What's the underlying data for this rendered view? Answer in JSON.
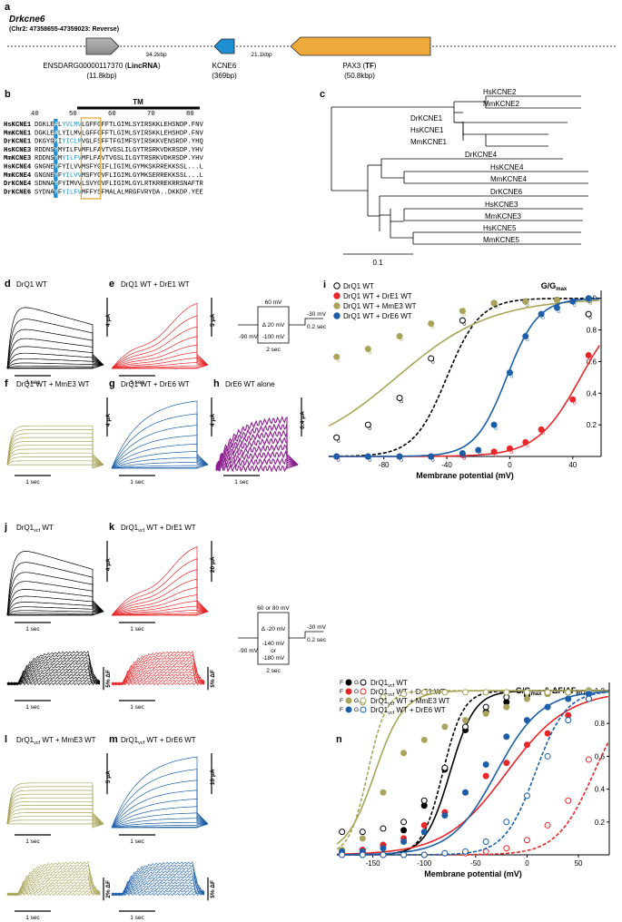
{
  "panel_a": {
    "letter": "a",
    "gene": "Drkcne6",
    "locus": "(Chr2: 47358655-47359023: Reverse)",
    "gene1_name_pre": "ENSDARG00000117370 (",
    "gene1_name_bold": "LincRNA",
    "gene1_name_post": ")",
    "gene1_size": "(11.8kbp)",
    "gap1": "34.2kbp",
    "gene2_name": "KCNE6",
    "gene2_size": "(369bp)",
    "gap2": "21.1kbp",
    "gene3_name_pre": "PAX3 (",
    "gene3_name_bold": "TF",
    "gene3_name_post": ")",
    "gene3_size": "(50.8kbp)"
  },
  "panel_b": {
    "letter": "b",
    "tm_label": "TM",
    "positions": [
      "40",
      "50",
      "60",
      "70",
      "80"
    ],
    "rows": [
      {
        "name": "HsKCNE1",
        "seq": "DGKLEALYVLMVLGFFGFFTLGIMLSYIRSKKLEHSNDP.FNV"
      },
      {
        "name": "MmKCNE1",
        "seq": "DGKLEALYILMVLGFFGFFTLGIMLSYIRSKKLEHSHDP.FNV"
      },
      {
        "name": "DrKCNE1",
        "seq": "DKGYGMIYICLMVGLFSFFTFGIMFSYIRSKKVENSRDP.YHQ"
      },
      {
        "name": "HsKCNE3",
        "seq": "RDDNSYMYILFVMFLFAVTVGSLILGYTRSRKVDKRSDP.YHV"
      },
      {
        "name": "MmKCNE3",
        "seq": "RDDNSYMYILFVMFLFAVTVGSLILGYTRSRKVDKRSDP.YHV"
      },
      {
        "name": "HsKCNE4",
        "seq": "GNGNEYFYILVVMSFYGIFLIGIMLGYMKSKRREKKSSL...L"
      },
      {
        "name": "MmKCNE4",
        "seq": "GNGNEYFYILVVMSFYGVFLIGIMLGYMKSERREKKSSL...L"
      },
      {
        "name": "DrKCNE4",
        "seq": "SDNNAYFYIMVVLSVYGVFLIGIMLGYLRTKRREKRRSNAFTR"
      },
      {
        "name": "DrKCNE6",
        "seq": "SYDNAYFYILFVMFFYSFMALALMRGFVRYDA..DKKDP.YEE"
      }
    ]
  },
  "panel_c": {
    "letter": "c",
    "taxa": [
      "HsKCNE2",
      "MmKCNE2",
      "DrKCNE1",
      "HsKCNE1",
      "MmKCNE1",
      "DrKCNE4",
      "HsKCNE4",
      "MmKCNE4",
      "DrKCNE6",
      "HsKCNE3",
      "MmKCNE3",
      "HsKCNE5",
      "MmKCNE5"
    ],
    "scale_label": "0.1"
  },
  "traces_top": {
    "d": {
      "letter": "d",
      "title": "DrQ1 WT",
      "scale": "4 μA",
      "time": "1 sec",
      "color": "#000000"
    },
    "e": {
      "letter": "e",
      "title": "DrQ1 WT + DrE1 WT",
      "scale": "5 μA",
      "time": "1 sec",
      "color": "#e8272a"
    },
    "f": {
      "letter": "f",
      "title": "DrQ1 WT + MmE3 WT",
      "scale": "4 μA",
      "time": "1 sec",
      "color": "#a9a45a"
    },
    "g": {
      "letter": "g",
      "title": "DrQ1 WT + DrE6 WT",
      "scale": "4 μA",
      "time": "1 sec",
      "color": "#1c5fa8"
    },
    "h": {
      "letter": "h",
      "title": "DrE6 WT alone",
      "scale": "0.4 μA",
      "time": "1 sec",
      "color": "#8b1f8f"
    }
  },
  "protocol_top": {
    "v1": "60 mV",
    "step": "Δ 20 mV",
    "v2": "-100 mV",
    "hold": "-90 mV",
    "tail": "-30 mV",
    "tail_t": "0.2 sec",
    "dur": "2 sec"
  },
  "traces_bottom": {
    "j": {
      "letter": "j",
      "title_pre": "DrQ1",
      "title_sub": "vcf",
      "title_post": " WT",
      "scale": "4 μA",
      "fscale": "5% ΔF",
      "time": "1 sec",
      "color": "#000000"
    },
    "k": {
      "letter": "k",
      "title_pre": "DrQ1",
      "title_sub": "vcf",
      "title_post": " WT + DrE1 WT",
      "scale": "20 μA",
      "fscale": "5% ΔF",
      "time": "1 sec",
      "color": "#e8272a"
    },
    "l": {
      "letter": "l",
      "title_pre": "DrQ1",
      "title_sub": "vcf",
      "title_post": " WT + MmE3 WT",
      "scale": "5 μA",
      "fscale": "2% ΔF",
      "time": "1 sec",
      "color": "#a9a45a"
    },
    "m": {
      "letter": "m",
      "title_pre": "DrQ1",
      "title_sub": "vcf",
      "title_post": " WT + DrE6 WT",
      "scale": "10 μA",
      "fscale": "5% ΔF",
      "time": "1 sec",
      "color": "#1c5fa8"
    }
  },
  "protocol_bottom": {
    "v1": "60 or 80 mV",
    "step": "Δ -20 mV",
    "v2a": "-140 mV",
    "v2b": "or",
    "v2c": "-180 mV",
    "hold": "-90 mV",
    "tail": "-30 mV",
    "tail_t": "0.2 sec",
    "dur": "2 sec"
  },
  "chart_data": [
    {
      "panel": "i",
      "type": "scatter",
      "title": "G/G",
      "title_sub": "max",
      "xlabel": "Membrane potential (mV)",
      "xlim": [
        -115,
        58
      ],
      "ylim": [
        0,
        1.05
      ],
      "xticks": [
        -80,
        -40,
        0,
        40
      ],
      "yticks": [
        0.2,
        0.4,
        0.6,
        0.8,
        1.0
      ],
      "legend_position": "top-left",
      "series": [
        {
          "name": "DrQ1 WT",
          "color": "#000000",
          "open": true,
          "dashed": true,
          "v_half": -40,
          "k": 10.5,
          "x": [
            -110,
            -90,
            -70,
            -50,
            -30,
            -10,
            10,
            30,
            50
          ],
          "y": [
            0.12,
            0.2,
            0.37,
            0.62,
            0.86,
            0.97,
            0.98,
            0.99,
            0.9
          ]
        },
        {
          "name": "DrQ1 WT + DrE1 WT",
          "color": "#e8272a",
          "open": false,
          "dashed": false,
          "v_half": 45,
          "k": 14,
          "x": [
            -110,
            -90,
            -70,
            -50,
            -30,
            -10,
            0,
            10,
            20,
            40,
            50
          ],
          "y": [
            0.0,
            0.0,
            0.0,
            0.0,
            0.01,
            0.03,
            0.05,
            0.09,
            0.17,
            0.36,
            0.64
          ]
        },
        {
          "name": "DrQ1 WT + MmE3 WT",
          "color": "#a9a45a",
          "open": false,
          "dashed": false,
          "v_half": -72,
          "k": 30,
          "x": [
            -110,
            -90,
            -70,
            -50,
            -30,
            -10,
            10,
            30,
            50
          ],
          "y": [
            0.63,
            0.68,
            0.76,
            0.84,
            0.92,
            0.97,
            0.98,
            0.99,
            0.99
          ]
        },
        {
          "name": "DrQ1 WT + DrE6 WT",
          "color": "#1c5fa8",
          "open": false,
          "dashed": false,
          "v_half": -2,
          "k": 10,
          "x": [
            -110,
            -90,
            -70,
            -50,
            -30,
            -20,
            -10,
            0,
            10,
            20,
            30,
            40,
            50
          ],
          "y": [
            0.0,
            0.0,
            0.0,
            0.0,
            0.02,
            0.04,
            0.2,
            0.53,
            0.76,
            0.9,
            0.94,
            0.98,
            1.0
          ]
        }
      ]
    },
    {
      "panel": "n",
      "type": "scatter",
      "title": "G/G",
      "title_sub": "max",
      "title_post": " & ΔF/ΔF",
      "title_sub2": "80 mV",
      "xlabel": "Membrane potential (mV)",
      "xlim": [
        -185,
        80
      ],
      "ylim": [
        0,
        1.05
      ],
      "xticks": [
        -150,
        -100,
        -50,
        0,
        50
      ],
      "yticks": [
        0.2,
        0.4,
        0.6,
        0.8,
        1.0
      ],
      "legend_position": "top-left",
      "legend_prefix_f": "F",
      "legend_prefix_g": "G",
      "series": [
        {
          "name_pre": "DrQ1",
          "name_sub": "vcf",
          "name_post": " WT",
          "color": "#000000",
          "F": {
            "v_half": -75,
            "k": 12,
            "x": [
              -180,
              -160,
              -140,
              -120,
              -100,
              -80,
              -60,
              -40,
              -20,
              0,
              20,
              40,
              60
            ],
            "y": [
              0.02,
              0.03,
              0.06,
              0.15,
              0.3,
              0.52,
              0.76,
              0.87,
              0.93,
              0.97,
              0.98,
              0.99,
              1.0
            ]
          },
          "G": {
            "v_half": -82,
            "k": 10,
            "x": [
              -180,
              -160,
              -140,
              -120,
              -100,
              -80,
              -60,
              -40,
              -20,
              0,
              20,
              40,
              60
            ],
            "y": [
              0.14,
              0.14,
              0.16,
              0.2,
              0.33,
              0.53,
              0.78,
              0.9,
              0.96,
              0.98,
              0.99,
              0.99,
              0.99
            ]
          }
        },
        {
          "name_pre": "DrQ1",
          "name_sub": "vcf",
          "name_post": " WT + DrE1 WT",
          "color": "#e8272a",
          "F": {
            "v_half": -20,
            "k": 30,
            "x": [
              -180,
              -160,
              -140,
              -120,
              -100,
              -80,
              -60,
              -40,
              -20,
              0,
              20,
              40,
              60
            ],
            "y": [
              0.01,
              0.03,
              0.06,
              0.1,
              0.18,
              0.26,
              0.38,
              0.48,
              0.56,
              0.67,
              0.74,
              0.85,
              0.95
            ]
          },
          "G": {
            "v_half": 65,
            "k": 18,
            "x": [
              -180,
              -160,
              -140,
              -120,
              -100,
              -80,
              -60,
              -40,
              -20,
              0,
              20,
              40,
              60
            ],
            "y": [
              0.0,
              0.0,
              0.0,
              0.0,
              0.0,
              0.01,
              0.01,
              0.02,
              0.04,
              0.09,
              0.18,
              0.33,
              0.58
            ]
          }
        },
        {
          "name_pre": "DrQ1",
          "name_sub": "vcf",
          "name_post": " WT + MmE3 WT",
          "color": "#a9a45a",
          "F": {
            "v_half": -148,
            "k": 14,
            "x": [
              -180,
              -160,
              -140,
              -120,
              -100,
              -80,
              -60,
              -40,
              -20,
              0,
              20,
              40,
              60
            ],
            "y": [
              0.03,
              0.1,
              0.38,
              0.62,
              0.7,
              0.78,
              0.82,
              0.86,
              0.9,
              0.95,
              0.98,
              0.99,
              1.0
            ]
          },
          "G": {
            "v_half": -155,
            "k": 9,
            "x": [
              -160,
              -140,
              -120,
              -100,
              -80,
              -60,
              -40,
              -20,
              0,
              20,
              40,
              60
            ],
            "y": [
              0.93,
              0.96,
              0.98,
              0.99,
              0.99,
              0.99,
              0.99,
              0.99,
              0.99,
              0.99,
              0.99,
              0.99
            ]
          }
        },
        {
          "name_pre": "DrQ1",
          "name_sub": "vcf",
          "name_post": " WT + DrE6 WT",
          "color": "#1c5fa8",
          "F": {
            "v_half": -30,
            "k": 22,
            "x": [
              -180,
              -160,
              -140,
              -120,
              -100,
              -80,
              -60,
              -40,
              -20,
              0,
              20,
              40,
              60
            ],
            "y": [
              0.02,
              0.02,
              0.04,
              0.08,
              0.14,
              0.24,
              0.38,
              0.55,
              0.72,
              0.82,
              0.9,
              0.95,
              0.98
            ]
          },
          "G": {
            "v_half": 8,
            "k": 15,
            "x": [
              -180,
              -160,
              -140,
              -120,
              -100,
              -80,
              -60,
              -40,
              -20,
              0,
              20,
              40,
              60
            ],
            "y": [
              0.0,
              0.0,
              0.0,
              0.0,
              0.0,
              0.01,
              0.02,
              0.08,
              0.2,
              0.36,
              0.6,
              0.82,
              0.95
            ]
          }
        }
      ]
    }
  ]
}
